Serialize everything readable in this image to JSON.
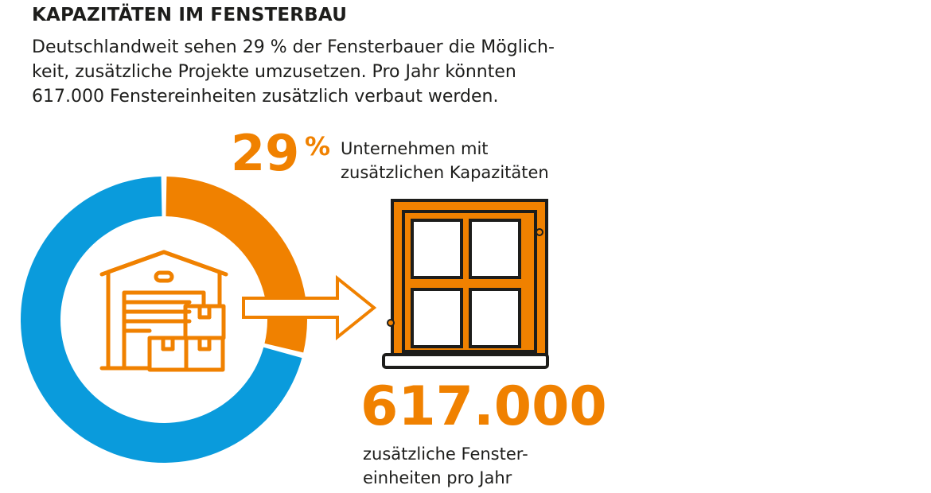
{
  "header": {
    "title": "KAPAZITÄTEN IM FENSTERBAU",
    "intro_lines": [
      "Deutschlandweit sehen 29 % der Fensterbauer die Möglich-",
      "keit, zusätzliche Projekte umzusetzen. Pro Jahr könnten",
      "617.000 Fenstereinheiten zusätzlich verbaut werden."
    ]
  },
  "stat_share": {
    "value": "29",
    "unit": "%",
    "label_lines": [
      "Unternehmen mit",
      "zusätzlichen Kapazitäten"
    ]
  },
  "stat_units": {
    "value": "617.000",
    "label_lines": [
      "zusätzliche Fenster-",
      "einheiten pro Jahr"
    ]
  },
  "colors": {
    "orange": "#f08100",
    "blue": "#0a9bdc",
    "dark": "#1d1d1b"
  },
  "icons": [
    "warehouse-icon",
    "arrow-right-icon",
    "window-icon"
  ],
  "chart_data": {
    "type": "pie",
    "variant": "donut",
    "slices": [
      {
        "value": 29,
        "color": "#f08100"
      },
      {
        "value": 71,
        "color": "#0a9bdc"
      }
    ]
  }
}
